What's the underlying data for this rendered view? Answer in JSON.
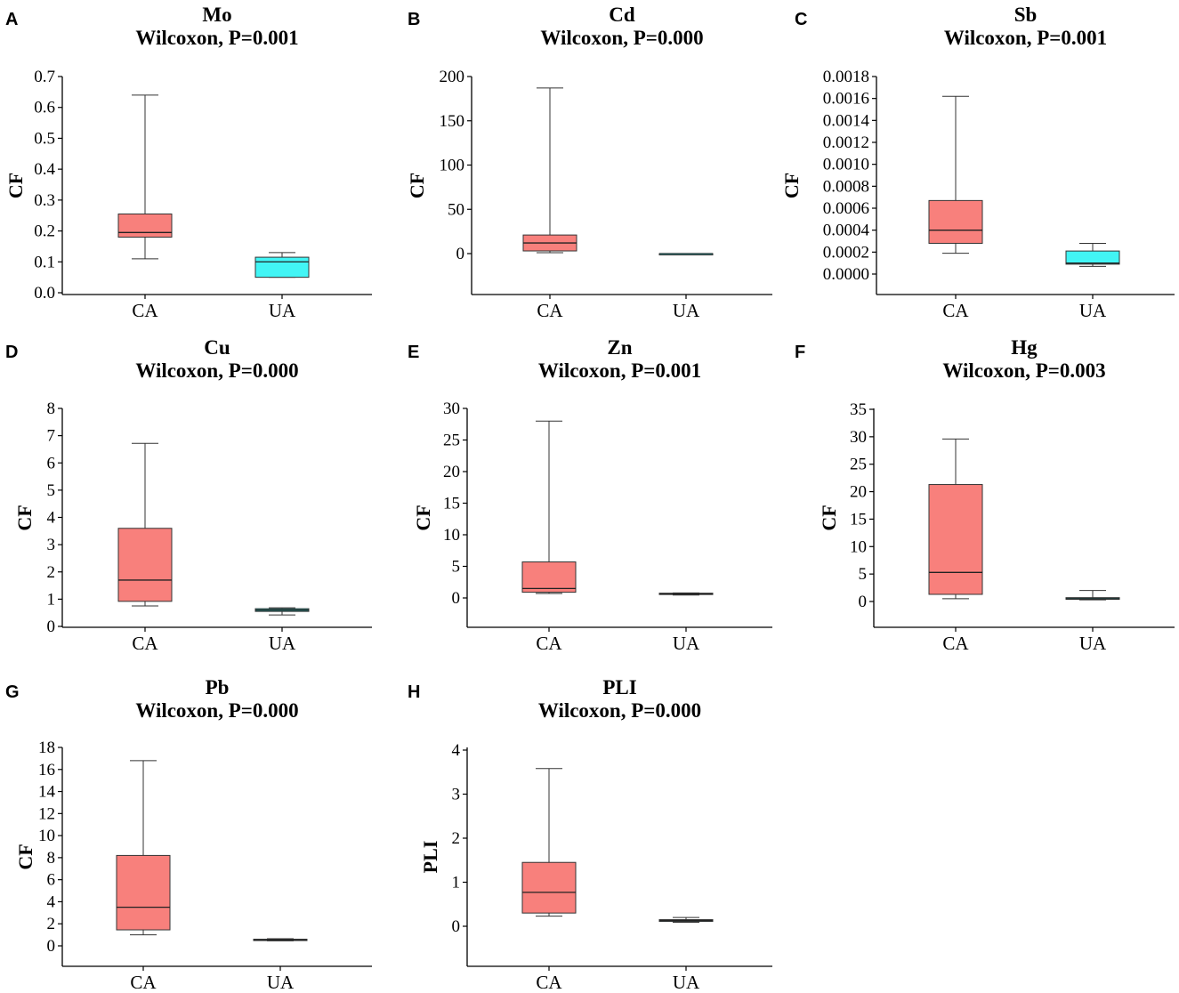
{
  "chart_data": [
    {
      "type": "box",
      "panel": "A",
      "title": "Mo",
      "subtitle": "Wilcoxon, P=0.001",
      "ylabel": "CF",
      "xlabel": "",
      "ylim": [
        0,
        0.7
      ],
      "grid": false,
      "yticks": [
        0,
        0.1,
        0.2,
        0.3,
        0.4,
        0.5,
        0.6,
        0.7
      ],
      "ytick_labels": [
        "0.0",
        "0.1",
        "0.2",
        "0.3",
        "0.4",
        "0.5",
        "0.6",
        "0.7"
      ],
      "categories": [
        "CA",
        "UA"
      ],
      "boxes": [
        {
          "category": "CA",
          "min": 0.11,
          "q1": 0.18,
          "median": 0.195,
          "q3": 0.255,
          "max": 0.64,
          "color": "#F8807C"
        },
        {
          "category": "UA",
          "min": 0.05,
          "q1": 0.05,
          "median": 0.1,
          "q3": 0.115,
          "max": 0.13,
          "color": "#42F5F5"
        }
      ]
    },
    {
      "type": "box",
      "panel": "B",
      "title": "Cd",
      "subtitle": "Wilcoxon, P=0.000",
      "ylabel": "CF",
      "xlabel": "",
      "ylim": [
        -45,
        200
      ],
      "grid": false,
      "yticks": [
        0,
        50,
        100,
        150,
        200
      ],
      "ytick_labels": [
        "0",
        "50",
        "100",
        "150",
        "200"
      ],
      "categories": [
        "CA",
        "UA"
      ],
      "boxes": [
        {
          "category": "CA",
          "min": 1,
          "q1": 3,
          "median": 12,
          "q3": 21,
          "max": 187,
          "color": "#F8807C"
        },
        {
          "category": "UA",
          "min": 0,
          "q1": 0,
          "median": 0,
          "q3": 0,
          "max": 0,
          "color": "#42F5F5"
        }
      ]
    },
    {
      "type": "box",
      "panel": "C",
      "title": "Sb",
      "subtitle": "Wilcoxon, P=0.001",
      "ylabel": "CF",
      "xlabel": "",
      "ylim": [
        -0.0002,
        0.0018
      ],
      "grid": false,
      "yticks": [
        0,
        0.0002,
        0.0004,
        0.0006,
        0.0008,
        0.001,
        0.0012,
        0.0014,
        0.0016,
        0.0018
      ],
      "ytick_labels": [
        "0.0000",
        "0.0002",
        "0.0004",
        "0.0006",
        "0.0008",
        "0.0010",
        "0.0012",
        "0.0014",
        "0.0016",
        "0.0018"
      ],
      "categories": [
        "CA",
        "UA"
      ],
      "boxes": [
        {
          "category": "CA",
          "min": 0.00019,
          "q1": 0.00028,
          "median": 0.0004,
          "q3": 0.00067,
          "max": 0.00162,
          "color": "#F8807C"
        },
        {
          "category": "UA",
          "min": 7e-05,
          "q1": 9e-05,
          "median": 0.0001,
          "q3": 0.00021,
          "max": 0.00028,
          "color": "#42F5F5"
        }
      ]
    },
    {
      "type": "box",
      "panel": "D",
      "title": "Cu",
      "subtitle": "Wilcoxon, P=0.000",
      "ylabel": "CF",
      "xlabel": "",
      "ylim": [
        0,
        8
      ],
      "grid": false,
      "yticks": [
        0,
        1,
        2,
        3,
        4,
        5,
        6,
        7,
        8
      ],
      "ytick_labels": [
        "0",
        "1",
        "2",
        "3",
        "4",
        "5",
        "6",
        "7",
        "8"
      ],
      "categories": [
        "CA",
        "UA"
      ],
      "boxes": [
        {
          "category": "CA",
          "min": 0.75,
          "q1": 0.92,
          "median": 1.7,
          "q3": 3.6,
          "max": 6.72,
          "color": "#F8807C"
        },
        {
          "category": "UA",
          "min": 0.42,
          "q1": 0.55,
          "median": 0.6,
          "q3": 0.65,
          "max": 0.68,
          "color": "#20B2AA"
        }
      ]
    },
    {
      "type": "box",
      "panel": "E",
      "title": "Zn",
      "subtitle": "Wilcoxon, P=0.001",
      "ylabel": "CF",
      "xlabel": "",
      "ylim": [
        -4.5,
        30
      ],
      "grid": false,
      "yticks": [
        0,
        5,
        10,
        15,
        20,
        25,
        30
      ],
      "ytick_labels": [
        "0",
        "5",
        "10",
        "15",
        "20",
        "25",
        "30"
      ],
      "categories": [
        "CA",
        "UA"
      ],
      "boxes": [
        {
          "category": "CA",
          "min": 0.7,
          "q1": 0.9,
          "median": 1.5,
          "q3": 5.7,
          "max": 28,
          "color": "#F8807C"
        },
        {
          "category": "UA",
          "min": 0.45,
          "q1": 0.55,
          "median": 0.65,
          "q3": 0.75,
          "max": 0.8,
          "color": "#20B2AA"
        }
      ]
    },
    {
      "type": "box",
      "panel": "F",
      "title": "Hg",
      "subtitle": "Wilcoxon, P=0.003",
      "ylabel": "CF",
      "xlabel": "",
      "ylim": [
        -5,
        35
      ],
      "grid": false,
      "yticks": [
        0,
        5,
        10,
        15,
        20,
        25,
        30,
        35
      ],
      "ytick_labels": [
        "0",
        "5",
        "10",
        "15",
        "20",
        "25",
        "30",
        "35"
      ],
      "categories": [
        "CA",
        "UA"
      ],
      "boxes": [
        {
          "category": "CA",
          "min": 0.5,
          "q1": 1.3,
          "median": 5.3,
          "q3": 21.3,
          "max": 29.6,
          "color": "#F8807C"
        },
        {
          "category": "UA",
          "min": 0.3,
          "q1": 0.4,
          "median": 0.5,
          "q3": 0.7,
          "max": 2.0,
          "color": "#20B2AA"
        }
      ]
    },
    {
      "type": "box",
      "panel": "G",
      "title": "Pb",
      "subtitle": "Wilcoxon, P=0.000",
      "ylabel": "CF",
      "xlabel": "",
      "ylim": [
        -1.8,
        18
      ],
      "grid": false,
      "yticks": [
        0,
        2,
        4,
        6,
        8,
        10,
        12,
        14,
        16,
        18
      ],
      "ytick_labels": [
        "0",
        "2",
        "4",
        "6",
        "8",
        "10",
        "12",
        "14",
        "16",
        "18"
      ],
      "categories": [
        "CA",
        "UA"
      ],
      "boxes": [
        {
          "category": "CA",
          "min": 1.0,
          "q1": 1.45,
          "median": 3.5,
          "q3": 8.2,
          "max": 16.8,
          "color": "#F8807C"
        },
        {
          "category": "UA",
          "min": 0.45,
          "q1": 0.5,
          "median": 0.55,
          "q3": 0.6,
          "max": 0.65,
          "color": "#20B2AA"
        }
      ]
    },
    {
      "type": "box",
      "panel": "H",
      "title": "PLI",
      "subtitle": "Wilcoxon, P=0.000",
      "ylabel": "PLI",
      "xlabel": "",
      "ylim": [
        -0.87,
        4
      ],
      "grid": false,
      "yticks": [
        0,
        1,
        2,
        3,
        4
      ],
      "ytick_labels": [
        "0",
        "1",
        "2",
        "3",
        "4"
      ],
      "categories": [
        "CA",
        "UA"
      ],
      "boxes": [
        {
          "category": "CA",
          "min": 0.23,
          "q1": 0.3,
          "median": 0.77,
          "q3": 1.45,
          "max": 3.58,
          "color": "#F8807C"
        },
        {
          "category": "UA",
          "min": 0.09,
          "q1": 0.11,
          "median": 0.13,
          "q3": 0.15,
          "max": 0.2,
          "color": "#20B2AA"
        }
      ]
    }
  ]
}
